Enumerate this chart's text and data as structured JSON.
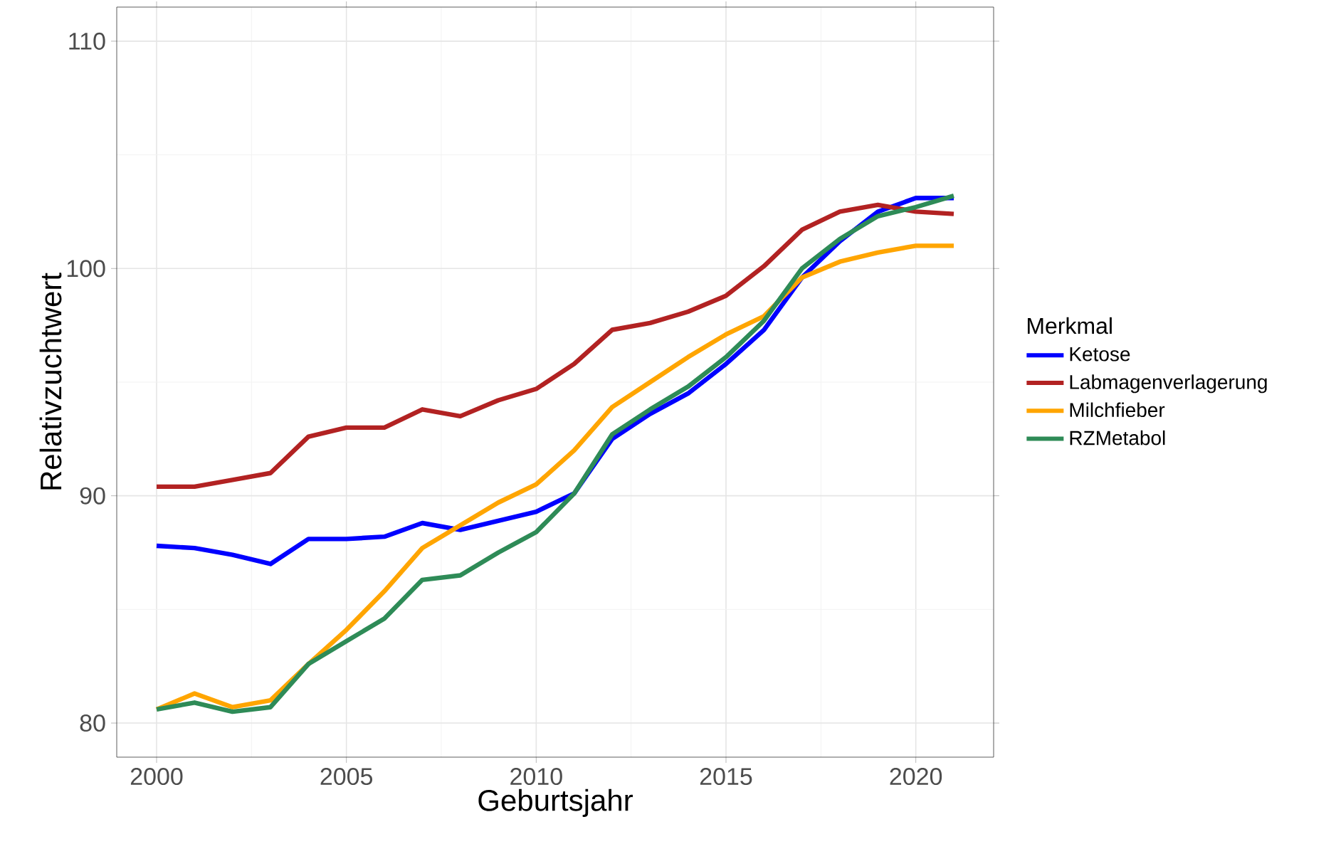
{
  "chart_data": {
    "type": "line",
    "xlabel": "Geburtsjahr",
    "ylabel": "Relativzuchtwert",
    "legend_title": "Merkmal",
    "x": [
      2000,
      2001,
      2002,
      2003,
      2004,
      2005,
      2006,
      2007,
      2008,
      2009,
      2010,
      2011,
      2012,
      2013,
      2014,
      2015,
      2016,
      2017,
      2018,
      2019,
      2020,
      2021
    ],
    "xlim": [
      1998.95,
      2022.05
    ],
    "ylim": [
      78.5,
      111.5
    ],
    "xticks": [
      2000,
      2005,
      2010,
      2015,
      2020
    ],
    "yticks": [
      80,
      90,
      100,
      110
    ],
    "grid": true,
    "legend": "right",
    "line_style": "solid",
    "series": [
      {
        "name": "Ketose",
        "color": "#0000ff",
        "values": [
          87.8,
          87.7,
          87.4,
          87.0,
          88.1,
          88.1,
          88.2,
          88.8,
          88.5,
          88.9,
          89.3,
          90.1,
          92.5,
          93.6,
          94.5,
          95.8,
          97.3,
          99.6,
          101.2,
          102.5,
          103.1,
          103.1
        ]
      },
      {
        "name": "Labmagenverlagerung",
        "color": "#b22222",
        "values": [
          90.4,
          90.4,
          90.7,
          91.0,
          92.6,
          93.0,
          93.0,
          93.8,
          93.5,
          94.2,
          94.7,
          95.8,
          97.3,
          97.6,
          98.1,
          98.8,
          100.1,
          101.7,
          102.5,
          102.8,
          102.5,
          102.4
        ]
      },
      {
        "name": "Milchfieber",
        "color": "#ffa500",
        "values": [
          80.6,
          81.3,
          80.7,
          81.0,
          82.6,
          84.1,
          85.8,
          87.7,
          88.7,
          89.7,
          90.5,
          92.0,
          93.9,
          95.0,
          96.1,
          97.1,
          97.9,
          99.6,
          100.3,
          100.7,
          101.0,
          101.0
        ]
      },
      {
        "name": "RZMetabol",
        "color": "#2e8b57",
        "values": [
          80.6,
          80.9,
          80.5,
          80.7,
          82.6,
          83.6,
          84.6,
          86.3,
          86.5,
          87.5,
          88.4,
          90.1,
          92.7,
          93.8,
          94.8,
          96.1,
          97.7,
          100.0,
          101.3,
          102.3,
          102.7,
          103.2
        ]
      }
    ]
  }
}
